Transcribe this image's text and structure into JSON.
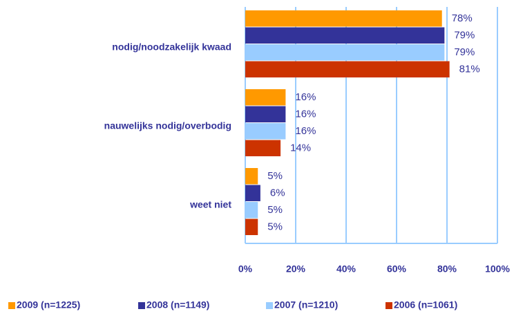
{
  "chart_data": {
    "type": "hbar",
    "categories": [
      "nodig/noodzakelijk kwaad",
      "nauwelijks nodig/overbodig",
      "weet niet"
    ],
    "series": [
      {
        "name": "2009 (n=1225)",
        "color": "#ff9900",
        "values": [
          78,
          16,
          5
        ],
        "value_labels": [
          "78%",
          "16%",
          "5%"
        ]
      },
      {
        "name": "2008 (n=1149)",
        "color": "#333399",
        "values": [
          79,
          16,
          6
        ],
        "value_labels": [
          "79%",
          "16%",
          "6%"
        ]
      },
      {
        "name": "2007 (n=1210)",
        "color": "#99ccff",
        "values": [
          79,
          16,
          5
        ],
        "value_labels": [
          "79%",
          "16%",
          "5%"
        ]
      },
      {
        "name": "2006 (n=1061)",
        "color": "#cc3300",
        "values": [
          81,
          14,
          5
        ],
        "value_labels": [
          "81%",
          "14%",
          "5%"
        ]
      }
    ],
    "xlim": [
      0,
      100
    ],
    "xticks": [
      {
        "value": 0,
        "label": "0%"
      },
      {
        "value": 20,
        "label": "20%"
      },
      {
        "value": 40,
        "label": "40%"
      },
      {
        "value": 60,
        "label": "60%"
      },
      {
        "value": 80,
        "label": "80%"
      },
      {
        "value": 100,
        "label": "100%"
      }
    ],
    "grid": true,
    "legend": "bottom"
  }
}
